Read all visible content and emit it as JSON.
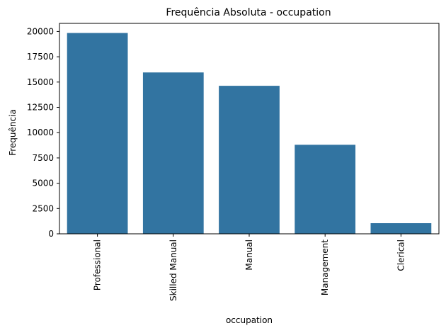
{
  "chart_data": {
    "type": "bar",
    "title": "Frequência Absoluta - occupation",
    "xlabel": "occupation",
    "ylabel": "Frequência",
    "categories": [
      "Professional",
      "Skilled Manual",
      "Manual",
      "Management",
      "Clerical"
    ],
    "values": [
      19850,
      15950,
      14630,
      8800,
      1050
    ],
    "ylim": [
      0,
      20800
    ],
    "yticks": [
      0,
      2500,
      5000,
      7500,
      10000,
      12500,
      15000,
      17500,
      20000
    ],
    "grid": false,
    "bar_color": "#3274a1",
    "x_tick_rotation": "vertical"
  }
}
